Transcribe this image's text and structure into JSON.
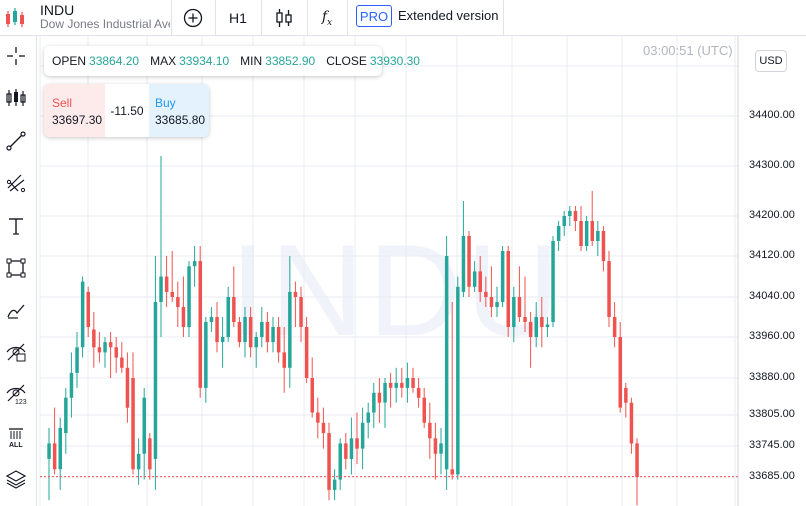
{
  "header": {
    "symbol": "INDU",
    "description": "Dow Jones Industrial Average",
    "interval": "H1",
    "pro_badge": "PRO",
    "extended_label": "Extended version"
  },
  "toolbar_icons": [
    "crosshair-icon",
    "candles-icon",
    "trend-line-icon",
    "fib-tools-icon",
    "text-icon",
    "rectangle-icon",
    "brush-icon",
    "hide-drawings-icon",
    "hide-indicators-icon",
    "remove-all-icon",
    "layers-icon"
  ],
  "ohlc": {
    "open_label": "OPEN",
    "open": "33864.20",
    "max_label": "MAX",
    "max": "33934.10",
    "min_label": "MIN",
    "min": "33852.90",
    "close_label": "CLOSE",
    "close": "33930.30"
  },
  "trade": {
    "sell_label": "Sell",
    "sell_price": "33697.30",
    "spread": "-11.50",
    "buy_label": "Buy",
    "buy_price": "33685.80"
  },
  "time": "03:00:51 (UTC)",
  "currency": "USD",
  "watermark": "INDU",
  "colors": {
    "up": "#26a69a",
    "down": "#ef5350",
    "accent": "#2962ff",
    "grid": "#e9ebf0"
  },
  "chart_data": {
    "type": "candlestick",
    "y_ticks": [
      "34400.00",
      "34300.00",
      "34200.00",
      "34120.00",
      "34040.00",
      "33960.00",
      "33880.00",
      "33805.00",
      "33745.00",
      "33685.00"
    ],
    "last_price": 33685.8,
    "candles": [
      {
        "o": 33720,
        "h": 33780,
        "l": 33640,
        "c": 33750
      },
      {
        "o": 33750,
        "h": 33820,
        "l": 33690,
        "c": 33700
      },
      {
        "o": 33700,
        "h": 33800,
        "l": 33660,
        "c": 33780
      },
      {
        "o": 33770,
        "h": 33860,
        "l": 33730,
        "c": 33840
      },
      {
        "o": 33840,
        "h": 33930,
        "l": 33800,
        "c": 33890
      },
      {
        "o": 33890,
        "h": 33970,
        "l": 33860,
        "c": 33940
      },
      {
        "o": 33940,
        "h": 34080,
        "l": 33920,
        "c": 34070
      },
      {
        "o": 34050,
        "h": 34060,
        "l": 33960,
        "c": 33980
      },
      {
        "o": 33975,
        "h": 34010,
        "l": 33900,
        "c": 33940
      },
      {
        "o": 33940,
        "h": 33970,
        "l": 33910,
        "c": 33930
      },
      {
        "o": 33930,
        "h": 33960,
        "l": 33900,
        "c": 33950
      },
      {
        "o": 33950,
        "h": 33970,
        "l": 33880,
        "c": 33940
      },
      {
        "o": 33940,
        "h": 33960,
        "l": 33890,
        "c": 33920
      },
      {
        "o": 33920,
        "h": 33950,
        "l": 33890,
        "c": 33900
      },
      {
        "o": 33900,
        "h": 33930,
        "l": 33790,
        "c": 33820
      },
      {
        "o": 33880,
        "h": 33930,
        "l": 33690,
        "c": 33700
      },
      {
        "o": 33700,
        "h": 33760,
        "l": 33670,
        "c": 33730
      },
      {
        "o": 33730,
        "h": 33860,
        "l": 33680,
        "c": 33840
      },
      {
        "o": 33760,
        "h": 33770,
        "l": 33680,
        "c": 33700
      },
      {
        "o": 33720,
        "h": 34120,
        "l": 33660,
        "c": 34030
      },
      {
        "o": 34030,
        "h": 34320,
        "l": 33960,
        "c": 34080
      },
      {
        "o": 34080,
        "h": 34120,
        "l": 34020,
        "c": 34050
      },
      {
        "o": 34050,
        "h": 34130,
        "l": 34030,
        "c": 34040
      },
      {
        "o": 34040,
        "h": 34070,
        "l": 33980,
        "c": 34020
      },
      {
        "o": 34020,
        "h": 34080,
        "l": 33960,
        "c": 33980
      },
      {
        "o": 33980,
        "h": 34110,
        "l": 33960,
        "c": 34100
      },
      {
        "o": 34100,
        "h": 34140,
        "l": 34060,
        "c": 34110
      },
      {
        "o": 34110,
        "h": 34140,
        "l": 33840,
        "c": 33860
      },
      {
        "o": 33860,
        "h": 34000,
        "l": 33830,
        "c": 33990
      },
      {
        "o": 33990,
        "h": 34020,
        "l": 33970,
        "c": 34000
      },
      {
        "o": 34000,
        "h": 34030,
        "l": 33930,
        "c": 33950
      },
      {
        "o": 33950,
        "h": 34000,
        "l": 33900,
        "c": 33960
      },
      {
        "o": 33960,
        "h": 34060,
        "l": 33950,
        "c": 34040
      },
      {
        "o": 34040,
        "h": 34100,
        "l": 33980,
        "c": 33990
      },
      {
        "o": 33990,
        "h": 34000,
        "l": 33940,
        "c": 33950
      },
      {
        "o": 33950,
        "h": 34020,
        "l": 33920,
        "c": 34000
      },
      {
        "o": 34000,
        "h": 34020,
        "l": 33920,
        "c": 33940
      },
      {
        "o": 33940,
        "h": 33970,
        "l": 33900,
        "c": 33960
      },
      {
        "o": 33960,
        "h": 34020,
        "l": 33940,
        "c": 33990
      },
      {
        "o": 33990,
        "h": 34010,
        "l": 33930,
        "c": 33950
      },
      {
        "o": 33950,
        "h": 34000,
        "l": 33930,
        "c": 33980
      },
      {
        "o": 33980,
        "h": 34000,
        "l": 33910,
        "c": 33930
      },
      {
        "o": 33930,
        "h": 33980,
        "l": 33850,
        "c": 33900
      },
      {
        "o": 33900,
        "h": 34120,
        "l": 33860,
        "c": 34050
      },
      {
        "o": 34050,
        "h": 34070,
        "l": 33980,
        "c": 34040
      },
      {
        "o": 34040,
        "h": 34060,
        "l": 33950,
        "c": 33980
      },
      {
        "o": 33980,
        "h": 34000,
        "l": 33870,
        "c": 33880
      },
      {
        "o": 33880,
        "h": 33920,
        "l": 33800,
        "c": 33810
      },
      {
        "o": 33810,
        "h": 33840,
        "l": 33760,
        "c": 33790
      },
      {
        "o": 33790,
        "h": 33820,
        "l": 33740,
        "c": 33770
      },
      {
        "o": 33770,
        "h": 33790,
        "l": 33640,
        "c": 33660
      },
      {
        "o": 33660,
        "h": 33700,
        "l": 33640,
        "c": 33680
      },
      {
        "o": 33680,
        "h": 33760,
        "l": 33660,
        "c": 33750
      },
      {
        "o": 33750,
        "h": 33770,
        "l": 33700,
        "c": 33720
      },
      {
        "o": 33720,
        "h": 33800,
        "l": 33690,
        "c": 33760
      },
      {
        "o": 33760,
        "h": 33810,
        "l": 33710,
        "c": 33740
      },
      {
        "o": 33740,
        "h": 33820,
        "l": 33700,
        "c": 33790
      },
      {
        "o": 33790,
        "h": 33830,
        "l": 33760,
        "c": 33810
      },
      {
        "o": 33810,
        "h": 33870,
        "l": 33780,
        "c": 33850
      },
      {
        "o": 33850,
        "h": 33880,
        "l": 33790,
        "c": 33830
      },
      {
        "o": 33830,
        "h": 33880,
        "l": 33780,
        "c": 33870
      },
      {
        "o": 33870,
        "h": 33890,
        "l": 33820,
        "c": 33860
      },
      {
        "o": 33860,
        "h": 33900,
        "l": 33830,
        "c": 33870
      },
      {
        "o": 33870,
        "h": 33900,
        "l": 33840,
        "c": 33860
      },
      {
        "o": 33860,
        "h": 33910,
        "l": 33830,
        "c": 33880
      },
      {
        "o": 33880,
        "h": 33900,
        "l": 33850,
        "c": 33860
      },
      {
        "o": 33860,
        "h": 33880,
        "l": 33820,
        "c": 33840
      },
      {
        "o": 33840,
        "h": 33860,
        "l": 33780,
        "c": 33790
      },
      {
        "o": 33790,
        "h": 33830,
        "l": 33720,
        "c": 33760
      },
      {
        "o": 33760,
        "h": 33790,
        "l": 33680,
        "c": 33730
      },
      {
        "o": 33730,
        "h": 33780,
        "l": 33690,
        "c": 33750
      },
      {
        "o": 33700,
        "h": 34160,
        "l": 33660,
        "c": 34120
      },
      {
        "o": 33700,
        "h": 34030,
        "l": 33680,
        "c": 33690
      },
      {
        "o": 33690,
        "h": 34080,
        "l": 33680,
        "c": 34060
      },
      {
        "o": 34050,
        "h": 34230,
        "l": 34040,
        "c": 34160
      },
      {
        "o": 34160,
        "h": 34170,
        "l": 34040,
        "c": 34060
      },
      {
        "o": 34060,
        "h": 34110,
        "l": 34050,
        "c": 34090
      },
      {
        "o": 34090,
        "h": 34120,
        "l": 34030,
        "c": 34050
      },
      {
        "o": 34050,
        "h": 34080,
        "l": 34020,
        "c": 34040
      },
      {
        "o": 34040,
        "h": 34100,
        "l": 34000,
        "c": 34020
      },
      {
        "o": 34020,
        "h": 34060,
        "l": 34000,
        "c": 34030
      },
      {
        "o": 34030,
        "h": 34140,
        "l": 34020,
        "c": 34130
      },
      {
        "o": 34130,
        "h": 34140,
        "l": 33960,
        "c": 33980
      },
      {
        "o": 33980,
        "h": 34060,
        "l": 33950,
        "c": 34040
      },
      {
        "o": 34040,
        "h": 34100,
        "l": 33990,
        "c": 34000
      },
      {
        "o": 34000,
        "h": 34080,
        "l": 33970,
        "c": 33990
      },
      {
        "o": 33990,
        "h": 34010,
        "l": 33900,
        "c": 33960
      },
      {
        "o": 33960,
        "h": 34030,
        "l": 33940,
        "c": 34000
      },
      {
        "o": 34000,
        "h": 34040,
        "l": 33940,
        "c": 33980
      },
      {
        "o": 33980,
        "h": 34000,
        "l": 33960,
        "c": 33985
      },
      {
        "o": 33990,
        "h": 34160,
        "l": 33980,
        "c": 34150
      },
      {
        "o": 34150,
        "h": 34190,
        "l": 34130,
        "c": 34180
      },
      {
        "o": 34180,
        "h": 34210,
        "l": 34160,
        "c": 34200
      },
      {
        "o": 34200,
        "h": 34220,
        "l": 34180,
        "c": 34210
      },
      {
        "o": 34210,
        "h": 34220,
        "l": 34170,
        "c": 34190
      },
      {
        "o": 34190,
        "h": 34220,
        "l": 34130,
        "c": 34140
      },
      {
        "o": 34140,
        "h": 34200,
        "l": 34130,
        "c": 34190
      },
      {
        "o": 34190,
        "h": 34250,
        "l": 34140,
        "c": 34150
      },
      {
        "o": 34150,
        "h": 34190,
        "l": 34120,
        "c": 34170
      },
      {
        "o": 34170,
        "h": 34180,
        "l": 34090,
        "c": 34110
      },
      {
        "o": 34110,
        "h": 34130,
        "l": 33980,
        "c": 34000
      },
      {
        "o": 34000,
        "h": 34030,
        "l": 33940,
        "c": 33960
      },
      {
        "o": 33960,
        "h": 33990,
        "l": 33810,
        "c": 33820
      },
      {
        "o": 33860,
        "h": 33870,
        "l": 33800,
        "c": 33830
      },
      {
        "o": 33830,
        "h": 33840,
        "l": 33730,
        "c": 33750
      },
      {
        "o": 33750,
        "h": 33760,
        "l": 33630,
        "c": 33685
      }
    ]
  }
}
